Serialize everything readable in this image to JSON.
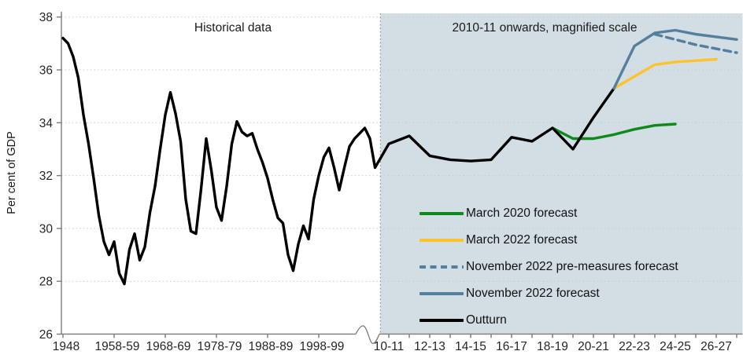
{
  "chart_data": {
    "type": "line",
    "title": "",
    "ylabel": "Per cent of GDP",
    "ylim": [
      26,
      38
    ],
    "yticks": [
      26,
      28,
      30,
      32,
      34,
      36,
      38
    ],
    "grid": "horizontal-dotted",
    "panels": {
      "left_title": "Historical data",
      "right_title": "2010-11 onwards, magnified scale",
      "right_panel_shade_color": "#d3dde4",
      "axis_break": "squiggle between 1998-99 and 10-11",
      "divider": "dotted vertical line at start of magnified panel"
    },
    "x_axis": {
      "left_tick_years": [
        1948,
        1958,
        1968,
        1978,
        1988,
        1998
      ],
      "left_tick_labels": [
        "1948",
        "1958-59",
        "1968-69",
        "1978-79",
        "1988-89",
        "1998-99"
      ],
      "right_label_years": [
        2010,
        2012,
        2014,
        2016,
        2018,
        2020,
        2022,
        2024,
        2026
      ],
      "right_tick_labels": [
        "10-11",
        "12-13",
        "14-15",
        "16-17",
        "18-19",
        "20-21",
        "22-23",
        "24-25",
        "26-27"
      ],
      "right_minor_ticks_every_year_from": 2010,
      "right_minor_ticks_every_year_to": 2027
    },
    "series": [
      {
        "name": "March 2020 forecast",
        "color": "#0f8a1a",
        "dash": false,
        "width": 3.4,
        "x_start": 2018,
        "values": [
          33.8,
          33.4,
          33.4,
          33.55,
          33.75,
          33.9,
          33.95
        ]
      },
      {
        "name": "March 2022 forecast",
        "color": "#fdc32d",
        "dash": false,
        "width": 3.4,
        "x_start": 2021,
        "values": [
          35.3,
          35.75,
          36.2,
          36.3,
          36.35,
          36.4
        ]
      },
      {
        "name": "Outturn",
        "color": "#000000",
        "dash": false,
        "width": 3.4,
        "x_start": 1948,
        "values": [
          37.2,
          37.0,
          36.5,
          35.7,
          34.3,
          33.2,
          31.9,
          30.5,
          29.5,
          29.0,
          29.5,
          28.3,
          27.9,
          29.2,
          29.8,
          28.8,
          29.3,
          30.6,
          31.6,
          33.0,
          34.3,
          35.15,
          34.35,
          33.3,
          31.1,
          29.9,
          29.8,
          31.5,
          33.4,
          32.2,
          30.8,
          30.3,
          31.6,
          33.2,
          34.05,
          33.65,
          33.5,
          33.6,
          33.0,
          32.5,
          31.9,
          31.1,
          30.4,
          30.2,
          29.0,
          28.4,
          29.4,
          30.1,
          29.6,
          31.1,
          32.0,
          32.7,
          33.05,
          32.3,
          31.45,
          32.3,
          33.1,
          33.4,
          33.6,
          33.8,
          33.4,
          32.3,
          33.2,
          33.5,
          32.75,
          32.6,
          32.55,
          32.6,
          33.45,
          33.3,
          33.8,
          33.0,
          34.2,
          35.3
        ]
      },
      {
        "name": "November 2022 pre-measures forecast",
        "color": "#54809f",
        "dash": true,
        "width": 3.4,
        "x_start": 2023,
        "values": [
          37.35,
          37.15,
          36.95,
          36.8,
          36.65
        ]
      },
      {
        "name": "November 2022 forecast",
        "color": "#54809f",
        "dash": false,
        "width": 3.4,
        "x_start": 2021,
        "values": [
          35.3,
          36.9,
          37.4,
          37.5,
          37.35,
          37.25,
          37.15
        ]
      }
    ],
    "legend": [
      {
        "label": "March 2020 forecast",
        "color": "#0f8a1a",
        "dash": false
      },
      {
        "label": "March 2022 forecast",
        "color": "#fdc32d",
        "dash": false
      },
      {
        "label": "November 2022 pre-measures forecast",
        "color": "#54809f",
        "dash": true
      },
      {
        "label": "November 2022 forecast",
        "color": "#54809f",
        "dash": false
      },
      {
        "label": "Outturn",
        "color": "#000000",
        "dash": false
      }
    ],
    "legend_position": "inside right-center of magnified panel"
  }
}
